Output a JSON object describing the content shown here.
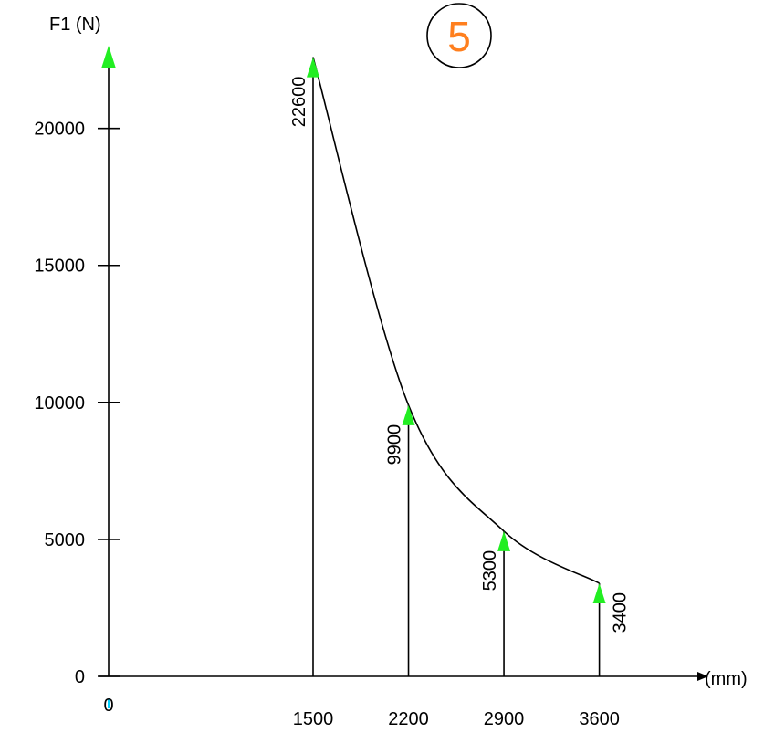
{
  "badge": {
    "text": "5",
    "color": "#ff7f1e"
  },
  "colors": {
    "arrow": "#22ee22",
    "marker": "#00d0ff",
    "ink": "#000000"
  },
  "chart_data": {
    "type": "line",
    "ylabel": "F1 (N)",
    "xlabel": "(mm)",
    "xlim": [
      0,
      4950
    ],
    "ylim": [
      0,
      23000
    ],
    "y_ticks": [
      {
        "value": 0,
        "label": "0"
      },
      {
        "value": 5000,
        "label": "5000"
      },
      {
        "value": 10000,
        "label": "10000"
      },
      {
        "value": 15000,
        "label": "15000"
      },
      {
        "value": 20000,
        "label": "20000"
      }
    ],
    "x_ticks": [
      {
        "value": 0,
        "label": "0"
      },
      {
        "value": 1500,
        "label": "1500"
      },
      {
        "value": 2200,
        "label": "2200"
      },
      {
        "value": 2900,
        "label": "2900"
      },
      {
        "value": 3600,
        "label": "3600"
      }
    ],
    "points": [
      {
        "x": 1500,
        "y": 22600,
        "label": "22600"
      },
      {
        "x": 2200,
        "y": 9900,
        "label": "9900"
      },
      {
        "x": 2900,
        "y": 5300,
        "label": "5300"
      },
      {
        "x": 3600,
        "y": 3400,
        "label": "3400"
      }
    ],
    "grid": false,
    "legend": "none"
  }
}
